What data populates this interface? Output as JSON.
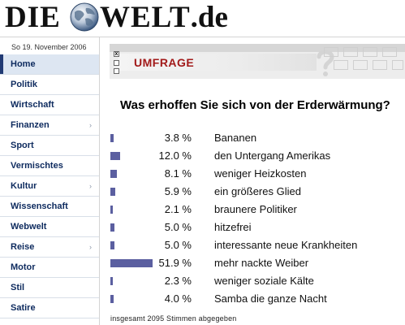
{
  "logo": {
    "part1": "DIE",
    "part2": "WELT",
    "tld": ".de"
  },
  "date": "So 19. November 2006",
  "nav": [
    {
      "label": "Home",
      "arrow": "",
      "active": true
    },
    {
      "label": "Politik",
      "arrow": ""
    },
    {
      "label": "Wirtschaft",
      "arrow": ""
    },
    {
      "label": "Finanzen",
      "arrow": "›"
    },
    {
      "label": "Sport",
      "arrow": ""
    },
    {
      "label": "Vermischtes",
      "arrow": ""
    },
    {
      "label": "Kultur",
      "arrow": "›"
    },
    {
      "label": "Wissenschaft",
      "arrow": ""
    },
    {
      "label": "Webwelt",
      "arrow": ""
    },
    {
      "label": "Reise",
      "arrow": "›"
    },
    {
      "label": "Motor",
      "arrow": ""
    },
    {
      "label": "Stil",
      "arrow": ""
    },
    {
      "label": "Satire",
      "arrow": ""
    }
  ],
  "banner": {
    "title": "UMFRAGE",
    "close_glyph": "x"
  },
  "poll": {
    "question": "Was erhoffen Sie sich von der Erderwärmung?",
    "bar_color": "#5b5fa0",
    "answers": [
      {
        "percent": 3.8,
        "percent_label": "3.8 %",
        "label": "Bananen"
      },
      {
        "percent": 12.0,
        "percent_label": "12.0 %",
        "label": "den Untergang Amerikas"
      },
      {
        "percent": 8.1,
        "percent_label": "8.1 %",
        "label": "weniger Heizkosten"
      },
      {
        "percent": 5.9,
        "percent_label": "5.9 %",
        "label": "ein größeres Glied"
      },
      {
        "percent": 2.1,
        "percent_label": "2.1 %",
        "label": "braunere Politiker"
      },
      {
        "percent": 5.0,
        "percent_label": "5.0 %",
        "label": "hitzefrei"
      },
      {
        "percent": 5.0,
        "percent_label": "5.0 %",
        "label": "interessante neue Krankheiten"
      },
      {
        "percent": 51.9,
        "percent_label": "51.9 %",
        "label": "mehr nackte Weiber"
      },
      {
        "percent": 2.3,
        "percent_label": "2.3 %",
        "label": "weniger soziale Kälte"
      },
      {
        "percent": 4.0,
        "percent_label": "4.0 %",
        "label": "Samba die ganze Nacht"
      }
    ],
    "total": "insgesamt 2095 Stimmen abgegeben"
  }
}
